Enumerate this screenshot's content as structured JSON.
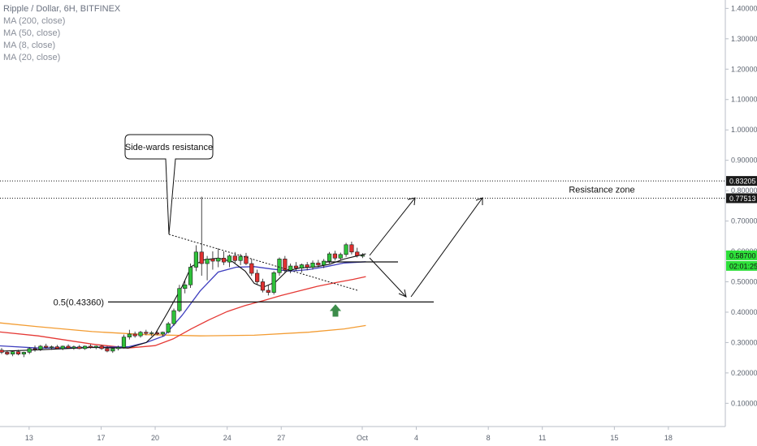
{
  "legend": {
    "title": "Ripple / Dollar, 6H, BITFINEX",
    "items": [
      "MA (200, close)",
      "MA (50, close)",
      "MA (8, close)",
      "MA (20, close)"
    ]
  },
  "price_badges": {
    "res_high": "0.83205",
    "res_low": "0.77513",
    "last": "0.58700",
    "countdown": "02:01:25"
  },
  "annotations": {
    "callout": "Side-wards resistance",
    "resistance_zone": "Resistance zone",
    "fib": "0.5(0.43360)"
  },
  "colors": {
    "bull": "#2ec13a",
    "bear": "#e03131",
    "ma200": "#f39c32",
    "ma50": "#e53935",
    "ma8": "#111111",
    "ma20": "#3f3fbf",
    "badge_bg": "#1a1a1a",
    "last_bg": "#2ee03a",
    "arrow_up": "#3c8c4a"
  },
  "chart_data": {
    "type": "candlestick",
    "title": "Ripple / Dollar, 6H, BITFINEX",
    "y_ticks": [
      0.1,
      0.2,
      0.3,
      0.4,
      0.5,
      0.6,
      0.7,
      0.8,
      0.9,
      1.0,
      1.1,
      1.2,
      1.3,
      1.4
    ],
    "y_tick_labels": [
      "0.10000",
      "0.20000",
      "0.30000",
      "0.40000",
      "0.50000",
      "0.60000",
      "0.70000",
      "0.80000",
      "0.90000",
      "1.00000",
      "1.10000",
      "1.20000",
      "1.30000",
      "1.40000"
    ],
    "ylim": [
      0.0,
      1.43
    ],
    "x_ticks": [
      {
        "label": "13",
        "d": -18.5
      },
      {
        "label": "17",
        "d": -14.5
      },
      {
        "label": "20",
        "d": -11.5
      },
      {
        "label": "24",
        "d": -7.5
      },
      {
        "label": "27",
        "d": -4.5
      },
      {
        "label": "Oct",
        "d": 0
      },
      {
        "label": "4",
        "d": 3
      },
      {
        "label": "8",
        "d": 7
      },
      {
        "label": "11",
        "d": 10
      },
      {
        "label": "15",
        "d": 14
      },
      {
        "label": "18",
        "d": 17
      }
    ],
    "candles": [
      {
        "o": 0.275,
        "h": 0.282,
        "l": 0.262,
        "c": 0.268
      },
      {
        "o": 0.268,
        "h": 0.274,
        "l": 0.258,
        "c": 0.262
      },
      {
        "o": 0.262,
        "h": 0.272,
        "l": 0.255,
        "c": 0.27
      },
      {
        "o": 0.27,
        "h": 0.276,
        "l": 0.258,
        "c": 0.262
      },
      {
        "o": 0.262,
        "h": 0.27,
        "l": 0.252,
        "c": 0.268
      },
      {
        "o": 0.268,
        "h": 0.285,
        "l": 0.262,
        "c": 0.28
      },
      {
        "o": 0.28,
        "h": 0.29,
        "l": 0.27,
        "c": 0.278
      },
      {
        "o": 0.278,
        "h": 0.292,
        "l": 0.272,
        "c": 0.288
      },
      {
        "o": 0.288,
        "h": 0.296,
        "l": 0.28,
        "c": 0.284
      },
      {
        "o": 0.284,
        "h": 0.29,
        "l": 0.276,
        "c": 0.286
      },
      {
        "o": 0.286,
        "h": 0.292,
        "l": 0.278,
        "c": 0.28
      },
      {
        "o": 0.28,
        "h": 0.29,
        "l": 0.275,
        "c": 0.288
      },
      {
        "o": 0.288,
        "h": 0.294,
        "l": 0.28,
        "c": 0.282
      },
      {
        "o": 0.282,
        "h": 0.29,
        "l": 0.276,
        "c": 0.286
      },
      {
        "o": 0.286,
        "h": 0.292,
        "l": 0.278,
        "c": 0.28
      },
      {
        "o": 0.28,
        "h": 0.29,
        "l": 0.276,
        "c": 0.288
      },
      {
        "o": 0.288,
        "h": 0.294,
        "l": 0.28,
        "c": 0.284
      },
      {
        "o": 0.284,
        "h": 0.29,
        "l": 0.278,
        "c": 0.288
      },
      {
        "o": 0.288,
        "h": 0.292,
        "l": 0.276,
        "c": 0.28
      },
      {
        "o": 0.28,
        "h": 0.288,
        "l": 0.268,
        "c": 0.272
      },
      {
        "o": 0.272,
        "h": 0.282,
        "l": 0.266,
        "c": 0.28
      },
      {
        "o": 0.28,
        "h": 0.29,
        "l": 0.274,
        "c": 0.284
      },
      {
        "o": 0.284,
        "h": 0.326,
        "l": 0.28,
        "c": 0.318
      },
      {
        "o": 0.318,
        "h": 0.342,
        "l": 0.31,
        "c": 0.328
      },
      {
        "o": 0.328,
        "h": 0.336,
        "l": 0.316,
        "c": 0.322
      },
      {
        "o": 0.322,
        "h": 0.338,
        "l": 0.316,
        "c": 0.334
      },
      {
        "o": 0.334,
        "h": 0.342,
        "l": 0.324,
        "c": 0.33
      },
      {
        "o": 0.33,
        "h": 0.338,
        "l": 0.322,
        "c": 0.332
      },
      {
        "o": 0.332,
        "h": 0.34,
        "l": 0.324,
        "c": 0.328
      },
      {
        "o": 0.328,
        "h": 0.336,
        "l": 0.32,
        "c": 0.334
      },
      {
        "o": 0.334,
        "h": 0.368,
        "l": 0.33,
        "c": 0.362
      },
      {
        "o": 0.362,
        "h": 0.412,
        "l": 0.355,
        "c": 0.405
      },
      {
        "o": 0.405,
        "h": 0.49,
        "l": 0.4,
        "c": 0.478
      },
      {
        "o": 0.478,
        "h": 0.505,
        "l": 0.462,
        "c": 0.49
      },
      {
        "o": 0.49,
        "h": 0.56,
        "l": 0.48,
        "c": 0.548
      },
      {
        "o": 0.548,
        "h": 0.62,
        "l": 0.535,
        "c": 0.598
      },
      {
        "o": 0.598,
        "h": 0.78,
        "l": 0.52,
        "c": 0.56
      },
      {
        "o": 0.56,
        "h": 0.585,
        "l": 0.505,
        "c": 0.575
      },
      {
        "o": 0.575,
        "h": 0.6,
        "l": 0.54,
        "c": 0.568
      },
      {
        "o": 0.568,
        "h": 0.61,
        "l": 0.548,
        "c": 0.578
      },
      {
        "o": 0.578,
        "h": 0.6,
        "l": 0.555,
        "c": 0.565
      },
      {
        "o": 0.565,
        "h": 0.59,
        "l": 0.548,
        "c": 0.585
      },
      {
        "o": 0.585,
        "h": 0.598,
        "l": 0.56,
        "c": 0.57
      },
      {
        "o": 0.57,
        "h": 0.592,
        "l": 0.555,
        "c": 0.584
      },
      {
        "o": 0.584,
        "h": 0.595,
        "l": 0.555,
        "c": 0.56
      },
      {
        "o": 0.56,
        "h": 0.575,
        "l": 0.52,
        "c": 0.528
      },
      {
        "o": 0.528,
        "h": 0.54,
        "l": 0.49,
        "c": 0.5
      },
      {
        "o": 0.5,
        "h": 0.51,
        "l": 0.465,
        "c": 0.472
      },
      {
        "o": 0.472,
        "h": 0.488,
        "l": 0.455,
        "c": 0.465
      },
      {
        "o": 0.465,
        "h": 0.535,
        "l": 0.458,
        "c": 0.53
      },
      {
        "o": 0.53,
        "h": 0.58,
        "l": 0.52,
        "c": 0.575
      },
      {
        "o": 0.575,
        "h": 0.585,
        "l": 0.53,
        "c": 0.538
      },
      {
        "o": 0.538,
        "h": 0.56,
        "l": 0.528,
        "c": 0.552
      },
      {
        "o": 0.552,
        "h": 0.565,
        "l": 0.535,
        "c": 0.545
      },
      {
        "o": 0.545,
        "h": 0.56,
        "l": 0.53,
        "c": 0.556
      },
      {
        "o": 0.556,
        "h": 0.565,
        "l": 0.538,
        "c": 0.548
      },
      {
        "o": 0.548,
        "h": 0.57,
        "l": 0.54,
        "c": 0.562
      },
      {
        "o": 0.562,
        "h": 0.572,
        "l": 0.548,
        "c": 0.555
      },
      {
        "o": 0.555,
        "h": 0.575,
        "l": 0.545,
        "c": 0.568
      },
      {
        "o": 0.568,
        "h": 0.598,
        "l": 0.56,
        "c": 0.592
      },
      {
        "o": 0.592,
        "h": 0.602,
        "l": 0.57,
        "c": 0.578
      },
      {
        "o": 0.578,
        "h": 0.596,
        "l": 0.572,
        "c": 0.59
      },
      {
        "o": 0.59,
        "h": 0.628,
        "l": 0.582,
        "c": 0.622
      },
      {
        "o": 0.622,
        "h": 0.632,
        "l": 0.59,
        "c": 0.598
      },
      {
        "o": 0.598,
        "h": 0.612,
        "l": 0.58,
        "c": 0.586
      },
      {
        "o": 0.586,
        "h": 0.594,
        "l": 0.578,
        "c": 0.587
      }
    ],
    "ma200": [
      [
        -21.0,
        0.37
      ],
      [
        -18.0,
        0.352
      ],
      [
        -15.0,
        0.336
      ],
      [
        -12.0,
        0.326
      ],
      [
        -9.0,
        0.322
      ],
      [
        -6.0,
        0.324
      ],
      [
        -3.0,
        0.334
      ],
      [
        -1.0,
        0.345
      ],
      [
        0.2,
        0.356
      ]
    ],
    "ma50": [
      [
        -21.0,
        0.34
      ],
      [
        -18.0,
        0.322
      ],
      [
        -15.0,
        0.295
      ],
      [
        -13.0,
        0.282
      ],
      [
        -11.5,
        0.29
      ],
      [
        -10.5,
        0.312
      ],
      [
        -9.5,
        0.345
      ],
      [
        -8.5,
        0.375
      ],
      [
        -7.5,
        0.402
      ],
      [
        -6.5,
        0.422
      ],
      [
        -5.5,
        0.438
      ],
      [
        -4.5,
        0.455
      ],
      [
        -3.5,
        0.47
      ],
      [
        -2.5,
        0.485
      ],
      [
        -1.5,
        0.497
      ],
      [
        -0.5,
        0.508
      ],
      [
        0.2,
        0.517
      ]
    ],
    "ma20": [
      [
        -21.0,
        0.292
      ],
      [
        -18.0,
        0.282
      ],
      [
        -15.0,
        0.284
      ],
      [
        -13.0,
        0.286
      ],
      [
        -12.0,
        0.3
      ],
      [
        -11.0,
        0.322
      ],
      [
        -10.0,
        0.39
      ],
      [
        -9.0,
        0.47
      ],
      [
        -8.0,
        0.532
      ],
      [
        -7.0,
        0.548
      ],
      [
        -6.0,
        0.55
      ],
      [
        -5.0,
        0.542
      ],
      [
        -4.0,
        0.535
      ],
      [
        -3.0,
        0.54
      ],
      [
        -2.0,
        0.55
      ],
      [
        -1.0,
        0.562
      ],
      [
        0.2,
        0.566
      ]
    ],
    "ma8": [
      [
        -21.0,
        0.27
      ],
      [
        -18.0,
        0.276
      ],
      [
        -15.0,
        0.284
      ],
      [
        -13.0,
        0.282
      ],
      [
        -12.0,
        0.3
      ],
      [
        -11.5,
        0.328
      ],
      [
        -10.8,
        0.4
      ],
      [
        -10.0,
        0.485
      ],
      [
        -9.5,
        0.55
      ],
      [
        -8.8,
        0.572
      ],
      [
        -8.0,
        0.578
      ],
      [
        -7.2,
        0.566
      ],
      [
        -6.5,
        0.535
      ],
      [
        -6.0,
        0.495
      ],
      [
        -5.5,
        0.482
      ],
      [
        -4.8,
        0.5
      ],
      [
        -4.2,
        0.535
      ],
      [
        -3.5,
        0.545
      ],
      [
        -2.5,
        0.55
      ],
      [
        -1.8,
        0.558
      ],
      [
        -1.0,
        0.575
      ],
      [
        -0.3,
        0.585
      ],
      [
        0.2,
        0.592
      ]
    ],
    "resistance_zone": [
      0.77513,
      0.83205
    ],
    "fib_level": 0.4336,
    "last_price": 0.587
  }
}
